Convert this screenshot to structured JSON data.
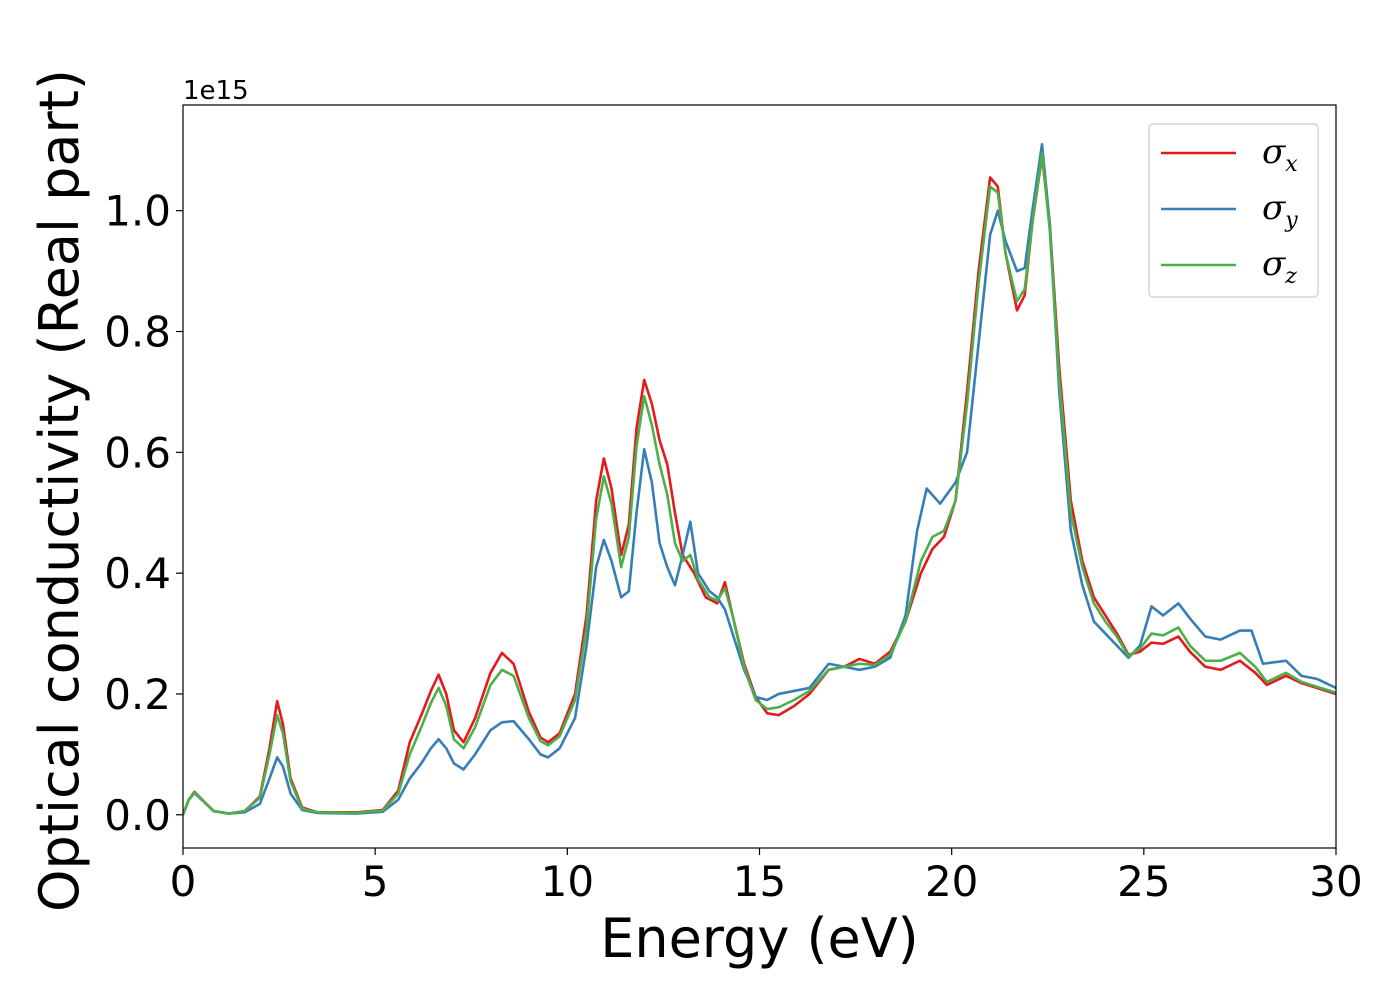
{
  "chart_data": {
    "type": "line",
    "xlabel": "Energy (eV)",
    "ylabel": "Optical conductivity (Real part)",
    "y_offset_label": "1e15",
    "xlim": [
      0,
      30
    ],
    "ylim": [
      -0.055,
      1.175
    ],
    "xticks": [
      0,
      5,
      10,
      15,
      20,
      25,
      30
    ],
    "xtick_labels": [
      "0",
      "5",
      "10",
      "15",
      "20",
      "25",
      "30"
    ],
    "yticks": [
      0.0,
      0.2,
      0.4,
      0.6,
      0.8,
      1.0
    ],
    "ytick_labels": [
      "0.0",
      "0.2",
      "0.4",
      "0.6",
      "0.8",
      "1.0"
    ],
    "grid": false,
    "legend_position": "top-right",
    "series": [
      {
        "name": "σ",
        "subscript": "x",
        "color": "#e41a1c",
        "points": [
          [
            0,
            0
          ],
          [
            0.15,
            0.025
          ],
          [
            0.3,
            0.038
          ],
          [
            0.5,
            0.025
          ],
          [
            0.8,
            0.006
          ],
          [
            1.2,
            0.002
          ],
          [
            1.6,
            0.006
          ],
          [
            2.0,
            0.03
          ],
          [
            2.25,
            0.11
          ],
          [
            2.45,
            0.188
          ],
          [
            2.6,
            0.15
          ],
          [
            2.8,
            0.06
          ],
          [
            3.1,
            0.012
          ],
          [
            3.5,
            0.004
          ],
          [
            4.5,
            0.004
          ],
          [
            5.2,
            0.008
          ],
          [
            5.6,
            0.04
          ],
          [
            5.9,
            0.12
          ],
          [
            6.2,
            0.165
          ],
          [
            6.45,
            0.205
          ],
          [
            6.65,
            0.232
          ],
          [
            6.85,
            0.2
          ],
          [
            7.05,
            0.14
          ],
          [
            7.3,
            0.12
          ],
          [
            7.6,
            0.16
          ],
          [
            8.0,
            0.235
          ],
          [
            8.3,
            0.268
          ],
          [
            8.6,
            0.25
          ],
          [
            9.0,
            0.17
          ],
          [
            9.3,
            0.128
          ],
          [
            9.5,
            0.12
          ],
          [
            9.8,
            0.135
          ],
          [
            10.2,
            0.2
          ],
          [
            10.5,
            0.33
          ],
          [
            10.75,
            0.52
          ],
          [
            10.95,
            0.59
          ],
          [
            11.15,
            0.54
          ],
          [
            11.4,
            0.43
          ],
          [
            11.6,
            0.48
          ],
          [
            11.8,
            0.64
          ],
          [
            12.0,
            0.72
          ],
          [
            12.2,
            0.68
          ],
          [
            12.4,
            0.62
          ],
          [
            12.6,
            0.58
          ],
          [
            12.8,
            0.5
          ],
          [
            13.0,
            0.43
          ],
          [
            13.3,
            0.4
          ],
          [
            13.6,
            0.36
          ],
          [
            13.9,
            0.35
          ],
          [
            14.1,
            0.385
          ],
          [
            14.3,
            0.33
          ],
          [
            14.6,
            0.25
          ],
          [
            14.9,
            0.195
          ],
          [
            15.2,
            0.168
          ],
          [
            15.5,
            0.165
          ],
          [
            15.9,
            0.18
          ],
          [
            16.3,
            0.2
          ],
          [
            16.8,
            0.24
          ],
          [
            17.2,
            0.245
          ],
          [
            17.6,
            0.258
          ],
          [
            18.0,
            0.25
          ],
          [
            18.4,
            0.27
          ],
          [
            18.8,
            0.32
          ],
          [
            19.2,
            0.4
          ],
          [
            19.5,
            0.44
          ],
          [
            19.8,
            0.46
          ],
          [
            20.1,
            0.52
          ],
          [
            20.4,
            0.7
          ],
          [
            20.7,
            0.9
          ],
          [
            21.0,
            1.055
          ],
          [
            21.2,
            1.04
          ],
          [
            21.4,
            0.93
          ],
          [
            21.7,
            0.835
          ],
          [
            21.9,
            0.86
          ],
          [
            22.1,
            0.98
          ],
          [
            22.35,
            1.09
          ],
          [
            22.55,
            0.98
          ],
          [
            22.8,
            0.74
          ],
          [
            23.1,
            0.52
          ],
          [
            23.4,
            0.42
          ],
          [
            23.7,
            0.36
          ],
          [
            24.0,
            0.33
          ],
          [
            24.3,
            0.3
          ],
          [
            24.6,
            0.265
          ],
          [
            24.9,
            0.27
          ],
          [
            25.2,
            0.285
          ],
          [
            25.5,
            0.283
          ],
          [
            25.9,
            0.295
          ],
          [
            26.2,
            0.27
          ],
          [
            26.6,
            0.245
          ],
          [
            27.0,
            0.24
          ],
          [
            27.5,
            0.255
          ],
          [
            27.9,
            0.235
          ],
          [
            28.2,
            0.215
          ],
          [
            28.7,
            0.23
          ],
          [
            29.1,
            0.218
          ],
          [
            29.5,
            0.21
          ],
          [
            30.0,
            0.2
          ]
        ]
      },
      {
        "name": "σ",
        "subscript": "y",
        "color": "#377eb8",
        "points": [
          [
            0,
            0
          ],
          [
            0.15,
            0.025
          ],
          [
            0.3,
            0.036
          ],
          [
            0.5,
            0.024
          ],
          [
            0.8,
            0.006
          ],
          [
            1.2,
            0.002
          ],
          [
            1.6,
            0.004
          ],
          [
            2.0,
            0.018
          ],
          [
            2.25,
            0.06
          ],
          [
            2.45,
            0.095
          ],
          [
            2.6,
            0.08
          ],
          [
            2.8,
            0.035
          ],
          [
            3.1,
            0.008
          ],
          [
            3.5,
            0.003
          ],
          [
            4.5,
            0.002
          ],
          [
            5.2,
            0.005
          ],
          [
            5.6,
            0.025
          ],
          [
            5.9,
            0.06
          ],
          [
            6.2,
            0.085
          ],
          [
            6.45,
            0.11
          ],
          [
            6.65,
            0.125
          ],
          [
            6.85,
            0.11
          ],
          [
            7.05,
            0.085
          ],
          [
            7.3,
            0.075
          ],
          [
            7.6,
            0.1
          ],
          [
            8.0,
            0.14
          ],
          [
            8.3,
            0.153
          ],
          [
            8.6,
            0.155
          ],
          [
            9.0,
            0.125
          ],
          [
            9.3,
            0.1
          ],
          [
            9.5,
            0.095
          ],
          [
            9.8,
            0.11
          ],
          [
            10.2,
            0.16
          ],
          [
            10.5,
            0.28
          ],
          [
            10.75,
            0.41
          ],
          [
            10.95,
            0.455
          ],
          [
            11.15,
            0.42
          ],
          [
            11.4,
            0.36
          ],
          [
            11.6,
            0.37
          ],
          [
            11.8,
            0.5
          ],
          [
            12.0,
            0.605
          ],
          [
            12.2,
            0.55
          ],
          [
            12.4,
            0.45
          ],
          [
            12.6,
            0.41
          ],
          [
            12.8,
            0.38
          ],
          [
            13.0,
            0.43
          ],
          [
            13.2,
            0.485
          ],
          [
            13.4,
            0.4
          ],
          [
            13.7,
            0.37
          ],
          [
            13.9,
            0.36
          ],
          [
            14.1,
            0.34
          ],
          [
            14.3,
            0.3
          ],
          [
            14.6,
            0.24
          ],
          [
            14.9,
            0.195
          ],
          [
            15.2,
            0.19
          ],
          [
            15.5,
            0.2
          ],
          [
            15.9,
            0.205
          ],
          [
            16.3,
            0.21
          ],
          [
            16.8,
            0.25
          ],
          [
            17.2,
            0.245
          ],
          [
            17.6,
            0.24
          ],
          [
            18.0,
            0.245
          ],
          [
            18.4,
            0.26
          ],
          [
            18.8,
            0.33
          ],
          [
            19.1,
            0.47
          ],
          [
            19.35,
            0.54
          ],
          [
            19.7,
            0.515
          ],
          [
            20.1,
            0.55
          ],
          [
            20.4,
            0.6
          ],
          [
            20.7,
            0.78
          ],
          [
            21.0,
            0.96
          ],
          [
            21.2,
            1.0
          ],
          [
            21.4,
            0.95
          ],
          [
            21.7,
            0.9
          ],
          [
            21.9,
            0.905
          ],
          [
            22.1,
            1.0
          ],
          [
            22.35,
            1.11
          ],
          [
            22.55,
            0.98
          ],
          [
            22.8,
            0.7
          ],
          [
            23.1,
            0.47
          ],
          [
            23.4,
            0.38
          ],
          [
            23.7,
            0.32
          ],
          [
            24.0,
            0.3
          ],
          [
            24.3,
            0.28
          ],
          [
            24.6,
            0.26
          ],
          [
            24.9,
            0.28
          ],
          [
            25.2,
            0.345
          ],
          [
            25.5,
            0.33
          ],
          [
            25.9,
            0.35
          ],
          [
            26.2,
            0.325
          ],
          [
            26.6,
            0.295
          ],
          [
            27.0,
            0.29
          ],
          [
            27.5,
            0.305
          ],
          [
            27.8,
            0.305
          ],
          [
            28.1,
            0.25
          ],
          [
            28.7,
            0.255
          ],
          [
            29.1,
            0.23
          ],
          [
            29.5,
            0.225
          ],
          [
            30.0,
            0.21
          ]
        ]
      },
      {
        "name": "σ",
        "subscript": "z",
        "color": "#4daf4a",
        "points": [
          [
            0,
            0
          ],
          [
            0.15,
            0.025
          ],
          [
            0.3,
            0.037
          ],
          [
            0.5,
            0.025
          ],
          [
            0.8,
            0.006
          ],
          [
            1.2,
            0.002
          ],
          [
            1.6,
            0.006
          ],
          [
            2.0,
            0.028
          ],
          [
            2.25,
            0.1
          ],
          [
            2.45,
            0.165
          ],
          [
            2.6,
            0.135
          ],
          [
            2.8,
            0.055
          ],
          [
            3.1,
            0.01
          ],
          [
            3.5,
            0.004
          ],
          [
            4.5,
            0.003
          ],
          [
            5.2,
            0.007
          ],
          [
            5.6,
            0.035
          ],
          [
            5.9,
            0.1
          ],
          [
            6.2,
            0.145
          ],
          [
            6.45,
            0.185
          ],
          [
            6.65,
            0.21
          ],
          [
            6.85,
            0.18
          ],
          [
            7.05,
            0.125
          ],
          [
            7.3,
            0.11
          ],
          [
            7.6,
            0.145
          ],
          [
            8.0,
            0.215
          ],
          [
            8.3,
            0.24
          ],
          [
            8.6,
            0.23
          ],
          [
            9.0,
            0.16
          ],
          [
            9.3,
            0.122
          ],
          [
            9.5,
            0.115
          ],
          [
            9.8,
            0.13
          ],
          [
            10.2,
            0.19
          ],
          [
            10.5,
            0.31
          ],
          [
            10.75,
            0.49
          ],
          [
            10.95,
            0.56
          ],
          [
            11.15,
            0.515
          ],
          [
            11.4,
            0.41
          ],
          [
            11.6,
            0.46
          ],
          [
            11.8,
            0.61
          ],
          [
            12.0,
            0.693
          ],
          [
            12.2,
            0.645
          ],
          [
            12.4,
            0.58
          ],
          [
            12.6,
            0.53
          ],
          [
            12.8,
            0.45
          ],
          [
            13.0,
            0.42
          ],
          [
            13.2,
            0.43
          ],
          [
            13.4,
            0.39
          ],
          [
            13.7,
            0.36
          ],
          [
            13.9,
            0.355
          ],
          [
            14.1,
            0.375
          ],
          [
            14.3,
            0.33
          ],
          [
            14.6,
            0.245
          ],
          [
            14.9,
            0.19
          ],
          [
            15.2,
            0.175
          ],
          [
            15.5,
            0.178
          ],
          [
            15.9,
            0.19
          ],
          [
            16.3,
            0.205
          ],
          [
            16.8,
            0.24
          ],
          [
            17.2,
            0.245
          ],
          [
            17.6,
            0.25
          ],
          [
            18.0,
            0.248
          ],
          [
            18.4,
            0.265
          ],
          [
            18.8,
            0.32
          ],
          [
            19.2,
            0.42
          ],
          [
            19.5,
            0.46
          ],
          [
            19.8,
            0.47
          ],
          [
            20.1,
            0.52
          ],
          [
            20.4,
            0.68
          ],
          [
            20.7,
            0.88
          ],
          [
            21.0,
            1.04
          ],
          [
            21.2,
            1.03
          ],
          [
            21.4,
            0.93
          ],
          [
            21.7,
            0.85
          ],
          [
            21.9,
            0.87
          ],
          [
            22.1,
            0.98
          ],
          [
            22.35,
            1.095
          ],
          [
            22.55,
            0.97
          ],
          [
            22.8,
            0.72
          ],
          [
            23.1,
            0.5
          ],
          [
            23.4,
            0.41
          ],
          [
            23.7,
            0.35
          ],
          [
            24.0,
            0.32
          ],
          [
            24.3,
            0.295
          ],
          [
            24.6,
            0.263
          ],
          [
            24.9,
            0.275
          ],
          [
            25.2,
            0.3
          ],
          [
            25.5,
            0.297
          ],
          [
            25.9,
            0.31
          ],
          [
            26.2,
            0.28
          ],
          [
            26.6,
            0.255
          ],
          [
            27.0,
            0.255
          ],
          [
            27.5,
            0.268
          ],
          [
            27.9,
            0.245
          ],
          [
            28.2,
            0.22
          ],
          [
            28.7,
            0.235
          ],
          [
            29.1,
            0.22
          ],
          [
            29.5,
            0.212
          ],
          [
            30.0,
            0.202
          ]
        ]
      }
    ]
  }
}
